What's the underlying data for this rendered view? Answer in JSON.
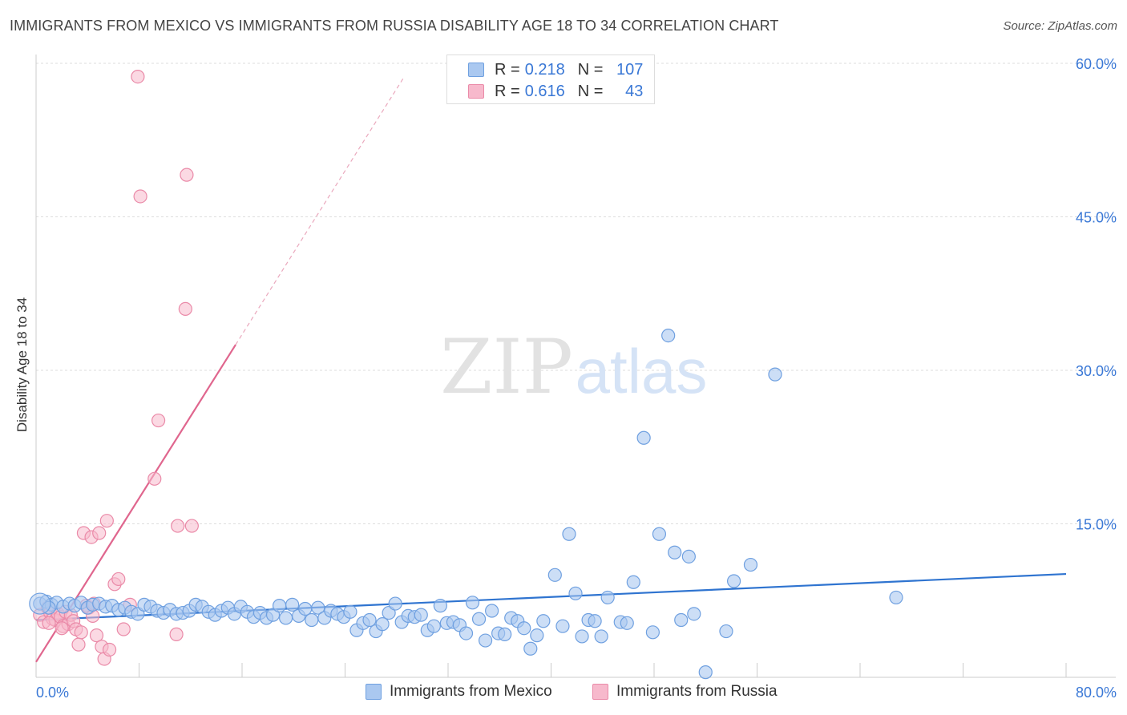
{
  "title": "IMMIGRANTS FROM MEXICO VS IMMIGRANTS FROM RUSSIA DISABILITY AGE 18 TO 34 CORRELATION CHART",
  "source": "Source: ZipAtlas.com",
  "watermark": {
    "zip": "ZIP",
    "atlas": "atlas"
  },
  "colors": {
    "mexico_fill": "#aac8f0",
    "mexico_stroke": "#6fa0e0",
    "mexico_line": "#2f74d0",
    "russia_fill": "#f7b9cc",
    "russia_stroke": "#ea8aa8",
    "russia_line": "#e0668e",
    "axis_text": "#3a78d6",
    "grid": "#dddddd"
  },
  "legend_top": {
    "rows": [
      {
        "r_label": "R =",
        "r_value": "0.218",
        "n_label": "N =",
        "n_value": "107"
      },
      {
        "r_label": "R =",
        "r_value": "0.616",
        "n_label": "N =",
        "n_value": "43"
      }
    ]
  },
  "legend_bottom": [
    "Immigrants from Mexico",
    "Immigrants from Russia"
  ],
  "chart_data": {
    "type": "scatter",
    "title": "IMMIGRANTS FROM MEXICO VS IMMIGRANTS FROM RUSSIA DISABILITY AGE 18 TO 34 CORRELATION CHART",
    "xlabel": "",
    "ylabel": "Disability Age 18 to 34",
    "xlim": [
      0,
      80
    ],
    "ylim": [
      0,
      60
    ],
    "x_tick_labels": [
      "0.0%",
      "80.0%"
    ],
    "y_ticks": [
      15,
      30,
      45,
      60
    ],
    "y_tick_labels": [
      "15.0%",
      "30.0%",
      "45.0%",
      "60.0%"
    ],
    "grid": true,
    "legend_position": "top-center",
    "series": [
      {
        "name": "Immigrants from Mexico",
        "R": 0.218,
        "N": 107,
        "trend": {
          "x": [
            0,
            80
          ],
          "y": [
            5.6,
            10.1
          ],
          "dashed_extension": false
        },
        "points": [
          [
            0.3,
            7.2
          ],
          [
            0.8,
            7.4
          ],
          [
            1.2,
            7.1
          ],
          [
            1.6,
            7.3
          ],
          [
            2.1,
            6.9
          ],
          [
            2.6,
            7.2
          ],
          [
            3.0,
            7.0
          ],
          [
            3.5,
            7.3
          ],
          [
            4.0,
            6.8
          ],
          [
            4.4,
            7.1
          ],
          [
            4.9,
            7.2
          ],
          [
            5.4,
            6.9
          ],
          [
            5.9,
            7.0
          ],
          [
            6.4,
            6.6
          ],
          [
            6.9,
            6.8
          ],
          [
            7.4,
            6.4
          ],
          [
            7.9,
            6.2
          ],
          [
            8.4,
            7.1
          ],
          [
            8.9,
            6.9
          ],
          [
            9.4,
            6.5
          ],
          [
            9.9,
            6.3
          ],
          [
            10.4,
            6.6
          ],
          [
            10.9,
            6.2
          ],
          [
            11.4,
            6.3
          ],
          [
            11.9,
            6.5
          ],
          [
            12.4,
            7.1
          ],
          [
            12.9,
            6.9
          ],
          [
            13.4,
            6.4
          ],
          [
            13.9,
            6.1
          ],
          [
            14.4,
            6.5
          ],
          [
            14.9,
            6.8
          ],
          [
            15.4,
            6.2
          ],
          [
            15.9,
            6.9
          ],
          [
            16.4,
            6.4
          ],
          [
            16.9,
            5.9
          ],
          [
            17.4,
            6.3
          ],
          [
            17.9,
            5.8
          ],
          [
            18.4,
            6.1
          ],
          [
            18.9,
            7.0
          ],
          [
            19.4,
            5.8
          ],
          [
            19.9,
            7.1
          ],
          [
            20.4,
            6.0
          ],
          [
            20.9,
            6.7
          ],
          [
            21.4,
            5.6
          ],
          [
            21.9,
            6.8
          ],
          [
            22.4,
            5.8
          ],
          [
            22.9,
            6.5
          ],
          [
            23.4,
            6.2
          ],
          [
            23.9,
            5.9
          ],
          [
            24.4,
            6.4
          ],
          [
            24.9,
            4.6
          ],
          [
            25.4,
            5.3
          ],
          [
            25.9,
            5.6
          ],
          [
            26.4,
            4.5
          ],
          [
            26.9,
            5.2
          ],
          [
            27.4,
            6.3
          ],
          [
            27.9,
            7.2
          ],
          [
            28.4,
            5.4
          ],
          [
            28.9,
            6.0
          ],
          [
            29.4,
            5.9
          ],
          [
            29.9,
            6.1
          ],
          [
            30.4,
            4.6
          ],
          [
            30.9,
            5.0
          ],
          [
            31.4,
            7.0
          ],
          [
            31.9,
            5.3
          ],
          [
            32.4,
            5.4
          ],
          [
            32.9,
            5.1
          ],
          [
            33.4,
            4.3
          ],
          [
            33.9,
            7.3
          ],
          [
            34.4,
            5.7
          ],
          [
            34.9,
            3.6
          ],
          [
            35.4,
            6.5
          ],
          [
            35.9,
            4.3
          ],
          [
            36.4,
            4.2
          ],
          [
            36.9,
            5.8
          ],
          [
            37.4,
            5.5
          ],
          [
            37.9,
            4.8
          ],
          [
            38.4,
            2.8
          ],
          [
            38.9,
            4.1
          ],
          [
            39.4,
            5.5
          ],
          [
            40.3,
            10.0
          ],
          [
            40.9,
            5.0
          ],
          [
            41.4,
            14.0
          ],
          [
            41.9,
            8.2
          ],
          [
            42.4,
            4.0
          ],
          [
            42.9,
            5.6
          ],
          [
            43.4,
            5.5
          ],
          [
            43.9,
            4.0
          ],
          [
            44.4,
            7.8
          ],
          [
            45.4,
            5.4
          ],
          [
            45.9,
            5.3
          ],
          [
            46.4,
            9.3
          ],
          [
            47.2,
            23.4
          ],
          [
            47.9,
            4.4
          ],
          [
            48.4,
            14.0
          ],
          [
            49.1,
            33.4
          ],
          [
            49.6,
            12.2
          ],
          [
            50.1,
            5.6
          ],
          [
            50.7,
            11.8
          ],
          [
            51.1,
            6.2
          ],
          [
            53.6,
            4.5
          ],
          [
            54.2,
            9.4
          ],
          [
            55.5,
            11.0
          ],
          [
            57.4,
            29.6
          ],
          [
            66.8,
            7.8
          ],
          [
            52.0,
            0.5
          ],
          [
            1.0,
            6.8
          ]
        ]
      },
      {
        "name": "Immigrants from Russia",
        "R": 0.616,
        "N": 43,
        "trend": {
          "x": [
            0,
            15.5
          ],
          "y": [
            1.5,
            32.5
          ],
          "dashed_extension": {
            "x": [
              15.5,
              28.5
            ],
            "y": [
              32.5,
              58.5
            ]
          }
        },
        "points": [
          [
            0.3,
            6.1
          ],
          [
            0.6,
            5.4
          ],
          [
            0.9,
            6.8
          ],
          [
            1.1,
            6.3
          ],
          [
            1.3,
            5.7
          ],
          [
            1.5,
            5.6
          ],
          [
            1.7,
            6.2
          ],
          [
            1.9,
            5.9
          ],
          [
            2.1,
            5.0
          ],
          [
            2.3,
            6.4
          ],
          [
            2.5,
            5.2
          ],
          [
            2.7,
            6.1
          ],
          [
            2.9,
            5.5
          ],
          [
            3.1,
            4.7
          ],
          [
            3.3,
            3.2
          ],
          [
            3.5,
            4.4
          ],
          [
            3.7,
            14.1
          ],
          [
            3.9,
            7.0
          ],
          [
            4.1,
            6.8
          ],
          [
            4.3,
            13.7
          ],
          [
            4.5,
            7.2
          ],
          [
            4.7,
            4.1
          ],
          [
            4.9,
            14.1
          ],
          [
            5.1,
            3.0
          ],
          [
            5.3,
            1.8
          ],
          [
            5.5,
            15.3
          ],
          [
            5.7,
            2.7
          ],
          [
            6.1,
            9.1
          ],
          [
            6.4,
            9.6
          ],
          [
            6.8,
            4.7
          ],
          [
            7.3,
            7.1
          ],
          [
            7.9,
            58.7
          ],
          [
            8.1,
            47.0
          ],
          [
            9.2,
            19.4
          ],
          [
            9.5,
            25.1
          ],
          [
            10.9,
            4.2
          ],
          [
            11.0,
            14.8
          ],
          [
            11.6,
            36.0
          ],
          [
            11.7,
            49.1
          ],
          [
            12.1,
            14.8
          ],
          [
            1.0,
            5.3
          ],
          [
            2.0,
            4.8
          ],
          [
            4.4,
            6.0
          ]
        ]
      }
    ]
  }
}
